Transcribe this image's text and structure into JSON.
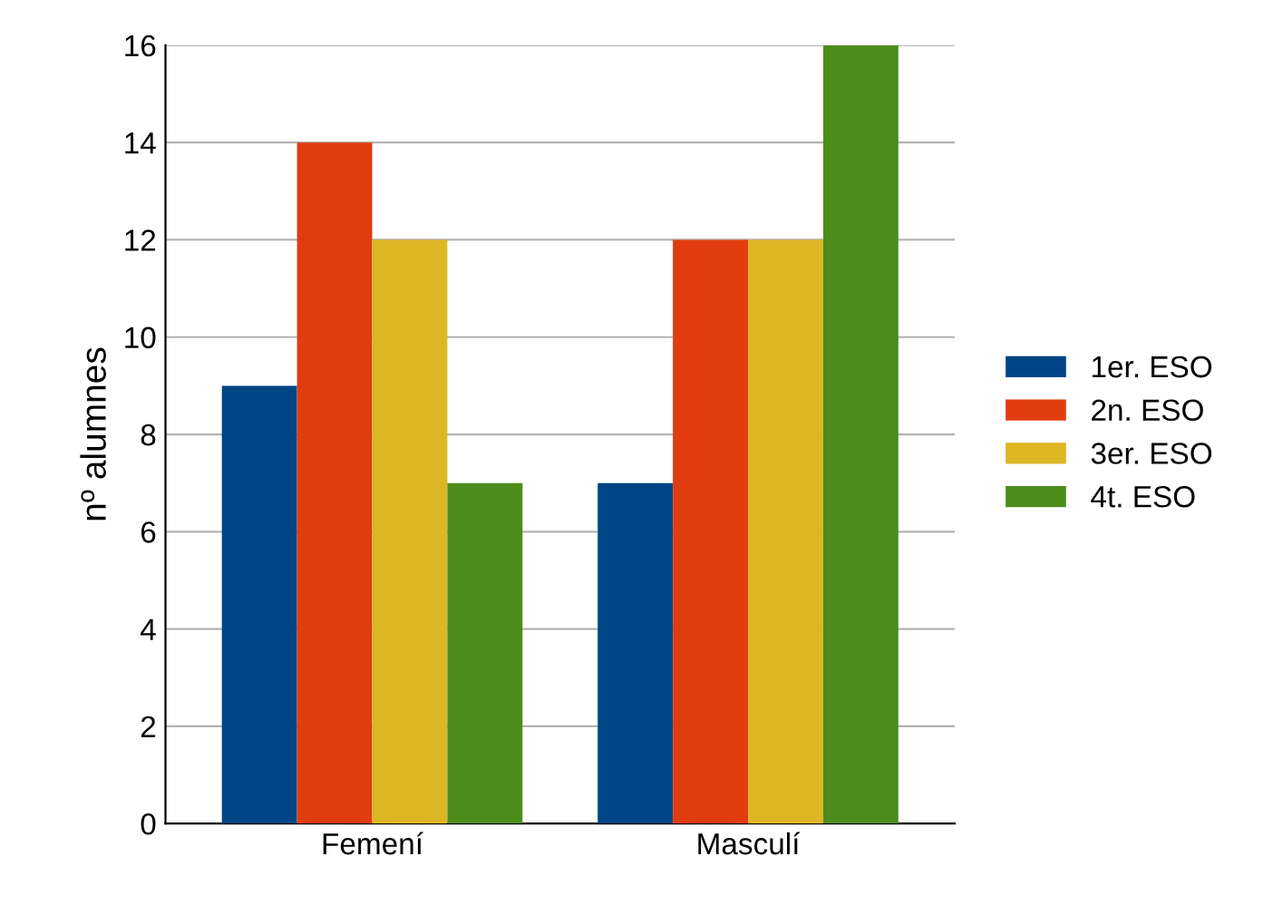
{
  "chart_data": {
    "type": "bar",
    "ylabel": "nº alumnes",
    "categories": [
      "Femení",
      "Masculí"
    ],
    "series": [
      {
        "name": "1er. ESO",
        "color": "#004586",
        "values": [
          9,
          7
        ]
      },
      {
        "name": "2n. ESO",
        "color": "#e03c10",
        "values": [
          14,
          12
        ]
      },
      {
        "name": "3er. ESO",
        "color": "#ddb623",
        "values": [
          12,
          12
        ]
      },
      {
        "name": "4t. ESO",
        "color": "#4e8c1c",
        "values": [
          7,
          16
        ]
      }
    ],
    "ylim": [
      0,
      16
    ],
    "yticks": [
      0,
      2,
      4,
      6,
      8,
      10,
      12,
      14,
      16
    ],
    "grid": "y",
    "legend": "right"
  }
}
